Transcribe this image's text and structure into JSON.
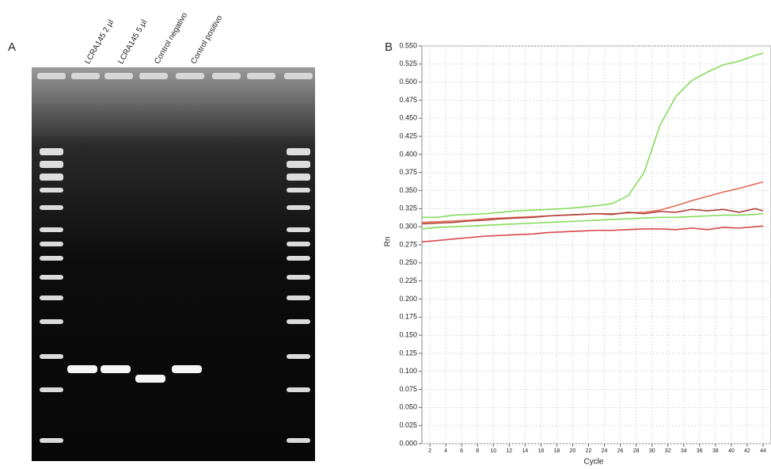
{
  "panel_a": {
    "label": "A",
    "lanes": [
      "LCRA145 2 µl",
      "LCRA145 5 µl",
      "Control negativo",
      "Control positivo"
    ]
  },
  "chart_data": {
    "type": "line",
    "label": "B",
    "x_label": "Cycle",
    "y_label": "Rn",
    "x": [
      1,
      3,
      5,
      7,
      9,
      11,
      13,
      15,
      17,
      19,
      21,
      23,
      25,
      27,
      29,
      31,
      33,
      35,
      37,
      39,
      41,
      43,
      44
    ],
    "series": [
      {
        "color": "#86dc5c",
        "values": [
          0.313,
          0.313,
          0.316,
          0.317,
          0.318,
          0.32,
          0.322,
          0.323,
          0.324,
          0.325,
          0.327,
          0.329,
          0.332,
          0.343,
          0.375,
          0.44,
          0.48,
          0.502,
          0.514,
          0.524,
          0.529,
          0.537,
          0.54
        ]
      },
      {
        "color": "#86dc5c",
        "values": [
          0.297,
          0.299,
          0.3,
          0.301,
          0.302,
          0.303,
          0.304,
          0.305,
          0.306,
          0.307,
          0.308,
          0.309,
          0.31,
          0.311,
          0.312,
          0.313,
          0.313,
          0.314,
          0.315,
          0.316,
          0.316,
          0.317,
          0.318
        ]
      },
      {
        "color": "#e0705c",
        "values": [
          0.306,
          0.307,
          0.308,
          0.309,
          0.311,
          0.312,
          0.313,
          0.314,
          0.315,
          0.316,
          0.317,
          0.318,
          0.318,
          0.319,
          0.32,
          0.323,
          0.329,
          0.336,
          0.342,
          0.348,
          0.353,
          0.359,
          0.362
        ]
      },
      {
        "color": "#b0403c",
        "values": [
          0.304,
          0.305,
          0.306,
          0.308,
          0.309,
          0.311,
          0.312,
          0.313,
          0.315,
          0.316,
          0.317,
          0.318,
          0.317,
          0.32,
          0.318,
          0.321,
          0.32,
          0.324,
          0.322,
          0.324,
          0.32,
          0.325,
          0.322
        ]
      },
      {
        "color": "#d9474a",
        "values": [
          0.279,
          0.281,
          0.283,
          0.285,
          0.287,
          0.288,
          0.289,
          0.29,
          0.292,
          0.293,
          0.294,
          0.295,
          0.295,
          0.296,
          0.297,
          0.297,
          0.296,
          0.298,
          0.296,
          0.299,
          0.298,
          0.3,
          0.301
        ]
      }
    ],
    "xlim": [
      1,
      45
    ],
    "ylim": [
      0,
      0.55
    ],
    "xticks": [
      2,
      4,
      6,
      8,
      10,
      12,
      14,
      16,
      18,
      20,
      22,
      24,
      26,
      28,
      30,
      32,
      34,
      36,
      38,
      40,
      42,
      44
    ],
    "yticks": [
      {
        "value": 0,
        "label": "0.000"
      },
      {
        "value": 0.025,
        "label": "0.025"
      },
      {
        "value": 0.05,
        "label": "0.050"
      },
      {
        "value": 0.075,
        "label": "0.075"
      },
      {
        "value": 0.1,
        "label": "0.100"
      },
      {
        "value": 0.125,
        "label": "0.125"
      },
      {
        "value": 0.15,
        "label": "0.150"
      },
      {
        "value": 0.175,
        "label": "0.175"
      },
      {
        "value": 0.2,
        "label": "0.200"
      },
      {
        "value": 0.225,
        "label": "0.225"
      },
      {
        "value": 0.25,
        "label": "0.250"
      },
      {
        "value": 0.275,
        "label": "0.275"
      },
      {
        "value": 0.3,
        "label": "0.300"
      },
      {
        "value": 0.325,
        "label": "0.325"
      },
      {
        "value": 0.35,
        "label": "0.350"
      },
      {
        "value": 0.375,
        "label": "0.375"
      },
      {
        "value": 0.4,
        "label": "0.400"
      },
      {
        "value": 0.425,
        "label": "0.425"
      },
      {
        "value": 0.45,
        "label": "0.450"
      },
      {
        "value": 0.475,
        "label": "0.475"
      },
      {
        "value": 0.5,
        "label": "0.500"
      },
      {
        "value": 0.525,
        "label": "0.525"
      },
      {
        "value": 0.55,
        "label": "0.550"
      }
    ],
    "grid": true
  }
}
